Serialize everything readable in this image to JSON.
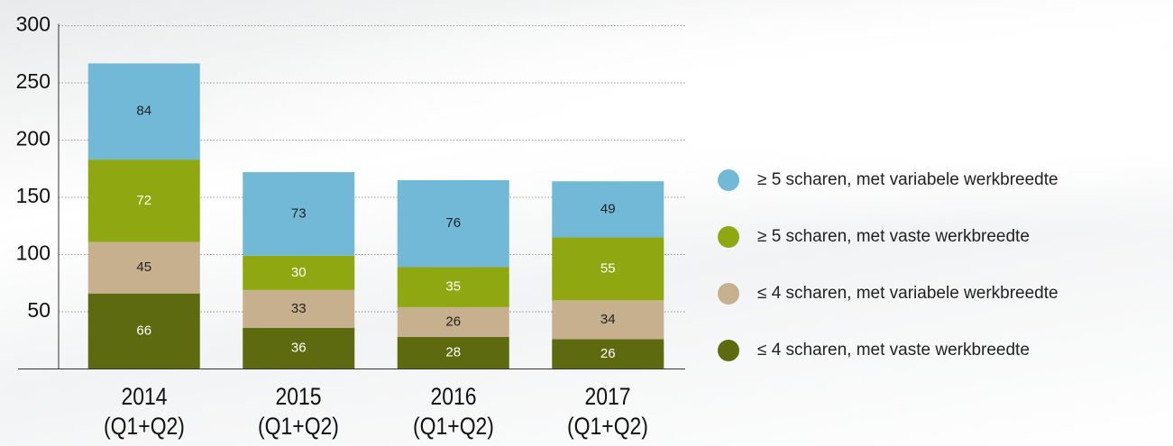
{
  "chart_data": {
    "type": "bar",
    "stacked": true,
    "categories": [
      "2014\n(Q1+Q2)",
      "2015\n(Q1+Q2)",
      "2016\n(Q1+Q2)",
      "2017\n(Q1+Q2)"
    ],
    "series": [
      {
        "name": "≤ 4 scharen, met vaste werkbreedte",
        "color": "#5d6a10",
        "label_color": "#ffffff",
        "values": [
          66,
          36,
          28,
          26
        ]
      },
      {
        "name": "≤ 4 scharen, met variabele werkbreedte",
        "color": "#c6b08e",
        "label_color": "#222222",
        "values": [
          45,
          33,
          26,
          34
        ]
      },
      {
        "name": "≥ 5 scharen, met vaste werkbreedte",
        "color": "#8fa812",
        "label_color": "#ffffff",
        "values": [
          72,
          30,
          35,
          55
        ]
      },
      {
        "name": "≥ 5 scharen, met variabele werkbreedte",
        "color": "#72b9d8",
        "label_color": "#222222",
        "values": [
          84,
          73,
          76,
          49
        ]
      }
    ],
    "ylim": [
      0,
      300
    ],
    "yticks": [
      50,
      100,
      150,
      200,
      250,
      300
    ],
    "grid": true,
    "legend": "right"
  }
}
